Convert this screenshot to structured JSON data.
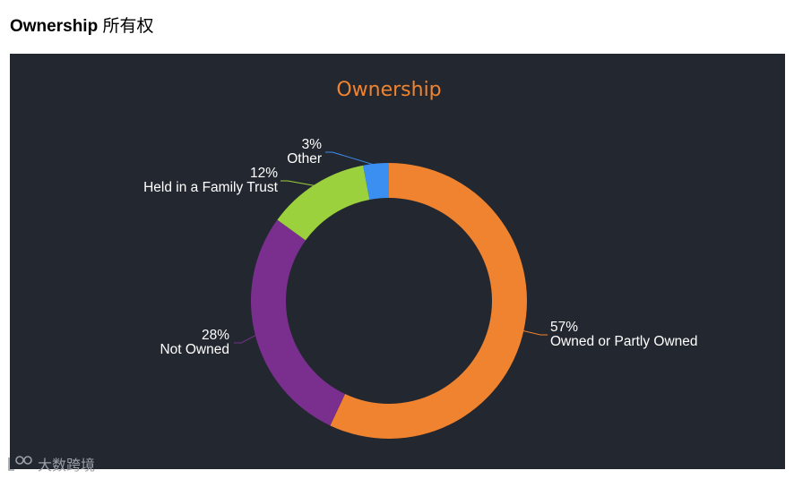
{
  "heading": {
    "title": "Ownership",
    "subtitle": "所有权"
  },
  "watermark": {
    "text": "大数跨境"
  },
  "colors": {
    "background": "#23272f",
    "title": "#f0832f",
    "label_text": "#ffffff"
  },
  "chart_data": {
    "type": "pie",
    "variant": "donut",
    "title": "Ownership",
    "slices": [
      {
        "label": "Owned or Partly Owned",
        "value": 57,
        "value_label": "57%",
        "color": "#f0832f"
      },
      {
        "label": "Not Owned",
        "value": 28,
        "value_label": "28%",
        "color": "#7a2f8f"
      },
      {
        "label": "Held in a Family Trust",
        "value": 12,
        "value_label": "12%",
        "color": "#9ad13d"
      },
      {
        "label": "Other",
        "value": 3,
        "value_label": "3%",
        "color": "#3b8ff0"
      }
    ]
  }
}
